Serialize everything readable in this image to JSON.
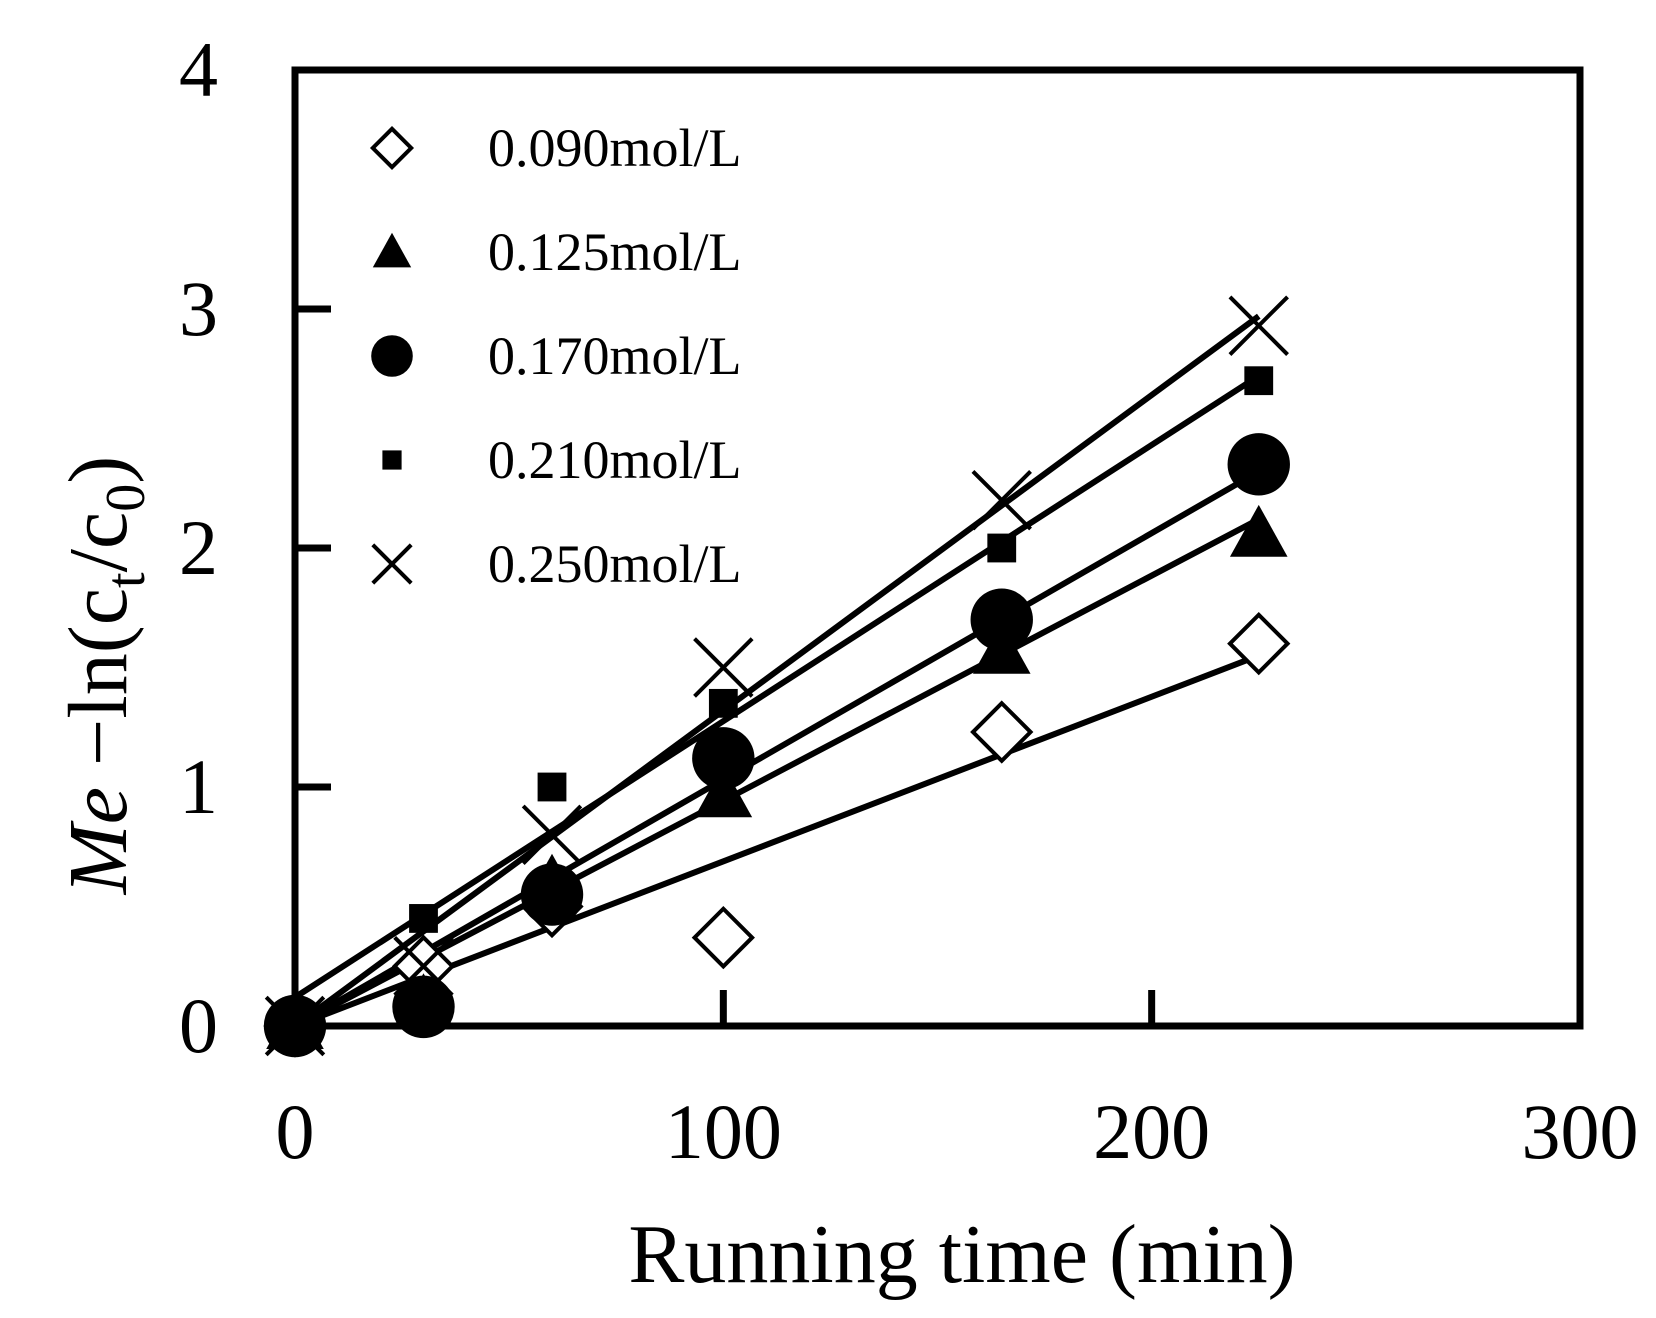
{
  "chart_data": {
    "type": "scatter",
    "title": "",
    "xlabel": "Running time (min)",
    "ylabel": {
      "italic": "Me",
      "prefix": " −ln(c",
      "sub1": "t",
      "mid": "/c",
      "sub2": "0",
      "suffix": ")"
    },
    "xlim": [
      0,
      300
    ],
    "ylim": [
      0,
      4
    ],
    "xticks": [
      0,
      100,
      200,
      300
    ],
    "yticks": [
      0,
      1,
      2,
      3,
      4
    ],
    "legend_position": "top-left",
    "series": [
      {
        "name": "0.090mol/L",
        "marker": "diamond-open",
        "x": [
          0,
          30,
          60,
          100,
          165,
          225
        ],
        "y": [
          0,
          0.25,
          0.5,
          0.37,
          1.23,
          1.6
        ],
        "fit": [
          [
            0,
            0
          ],
          [
            225,
            1.55
          ]
        ]
      },
      {
        "name": "0.125mol/L",
        "marker": "triangle",
        "x": [
          0,
          30,
          60,
          100,
          165,
          225
        ],
        "y": [
          0,
          0.1,
          0.6,
          0.97,
          1.57,
          2.06
        ],
        "fit": [
          [
            0,
            0
          ],
          [
            225,
            2.12
          ]
        ]
      },
      {
        "name": "0.170mol/L",
        "marker": "circle",
        "x": [
          0,
          30,
          60,
          100,
          165,
          225
        ],
        "y": [
          0,
          0.08,
          0.55,
          1.12,
          1.7,
          2.35
        ],
        "fit": [
          [
            0,
            0
          ],
          [
            225,
            2.32
          ]
        ]
      },
      {
        "name": "0.210mol/L",
        "marker": "square",
        "x": [
          0,
          30,
          60,
          100,
          165,
          225
        ],
        "y": [
          0,
          0.45,
          1.0,
          1.35,
          2.0,
          2.7
        ],
        "fit": [
          [
            0,
            0.12
          ],
          [
            225,
            2.72
          ]
        ]
      },
      {
        "name": "0.250mol/L",
        "marker": "x",
        "x": [
          0,
          30,
          60,
          100,
          165,
          225
        ],
        "y": [
          0,
          0.25,
          0.8,
          1.5,
          2.2,
          2.93
        ],
        "fit": [
          [
            0,
            0
          ],
          [
            225,
            2.97
          ]
        ]
      }
    ]
  }
}
